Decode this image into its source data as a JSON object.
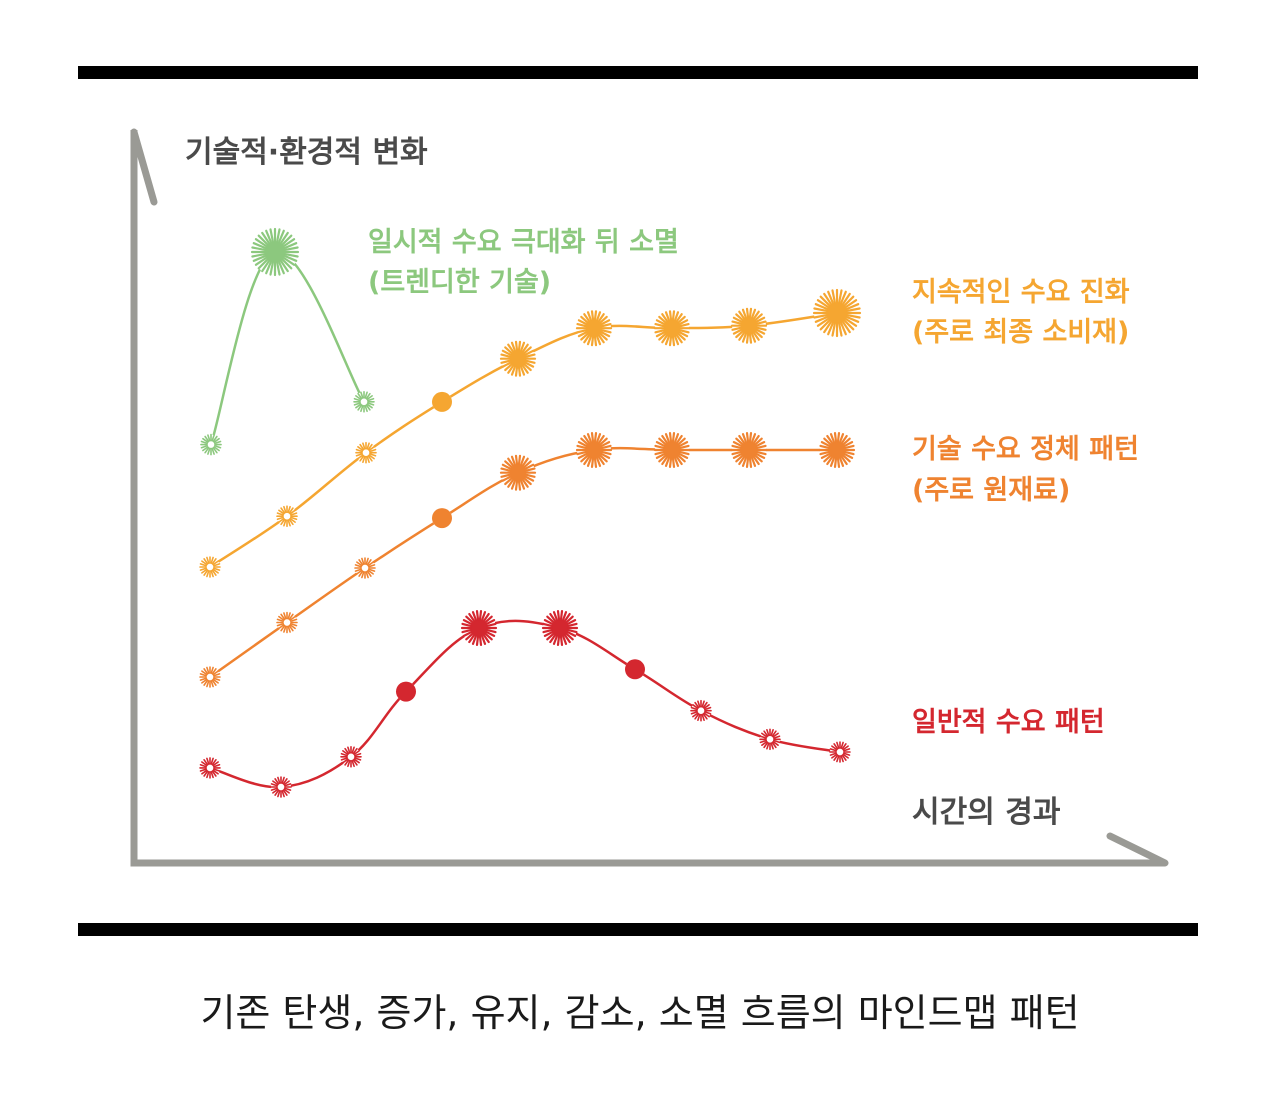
{
  "diagram": {
    "y_axis_label": "기술적·환경적 변화",
    "x_axis_label": "시간의 경과",
    "axis_color": "#9a9a95",
    "series": [
      {
        "key": "trendy",
        "label_line1": "일시적 수요 극대화 뒤 소멸",
        "label_line2": "(트렌디한 기술)",
        "color": "#8cc87e",
        "values": [
          0.1,
          1.0,
          0.3
        ],
        "marker_styles": [
          "dotted",
          "burst",
          "dotted"
        ]
      },
      {
        "key": "sustained",
        "label_line1": "지속적인 수요 진화",
        "label_line2": "(주로 최종 소비재)",
        "color": "#f5a631",
        "values": [
          0.0,
          0.2,
          0.45,
          0.65,
          0.82,
          0.94,
          0.94,
          0.95,
          1.0
        ],
        "marker_styles": [
          "dotted",
          "dotted",
          "dotted",
          "solid",
          "burst",
          "burst",
          "burst",
          "burst",
          "burst"
        ]
      },
      {
        "key": "stagnant",
        "label_line1": "기술 수요 정체 패턴",
        "label_line2": "(주로 원재료)",
        "color": "#ef8330",
        "values": [
          0.0,
          0.24,
          0.48,
          0.7,
          0.9,
          1.0,
          1.0,
          1.0,
          1.0
        ],
        "marker_styles": [
          "dotted",
          "dotted",
          "dotted",
          "solid",
          "burst",
          "burst",
          "burst",
          "burst",
          "burst"
        ]
      },
      {
        "key": "general",
        "label_line1": "일반적 수요 패턴",
        "label_line2": "",
        "color": "#d4272f",
        "values": [
          0.12,
          0.0,
          0.19,
          0.6,
          1.0,
          1.0,
          0.74,
          0.48,
          0.3,
          0.22
        ],
        "marker_styles": [
          "dotted",
          "dotted",
          "dotted",
          "solid",
          "burst",
          "burst",
          "solid",
          "dotted",
          "dotted",
          "dotted"
        ]
      }
    ]
  },
  "caption": "기존 탄생, 증가, 유지, 감소, 소멸 흐름의 마인드맵 패턴"
}
